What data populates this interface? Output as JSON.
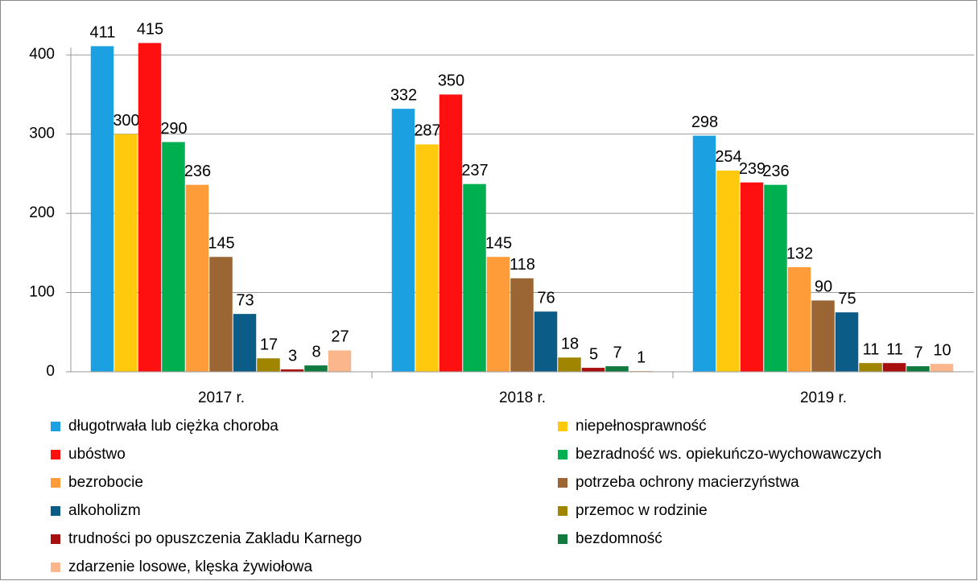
{
  "chart_data": {
    "type": "bar",
    "categories": [
      "2017 r.",
      "2018 r.",
      "2019 r."
    ],
    "series": [
      {
        "name": "długotrwała lub ciężka choroba",
        "color": "#1ba1e2",
        "values": [
          411,
          332,
          298
        ]
      },
      {
        "name": "niepełnosprawność",
        "color": "#ffc90e",
        "values": [
          300,
          287,
          254
        ]
      },
      {
        "name": "ubóstwo",
        "color": "#ff1010",
        "values": [
          415,
          350,
          239
        ]
      },
      {
        "name": "bezradność ws. opiekuńczo-wychowawczych",
        "color": "#00b050",
        "values": [
          290,
          237,
          236
        ]
      },
      {
        "name": "bezrobocie",
        "color": "#ff9c3a",
        "values": [
          236,
          145,
          132
        ]
      },
      {
        "name": "potrzeba ochrony macierzyństwa",
        "color": "#9c6534",
        "values": [
          145,
          118,
          90
        ]
      },
      {
        "name": "alkoholizm",
        "color": "#0c5c88",
        "values": [
          73,
          76,
          75
        ]
      },
      {
        "name": "przemoc w rodzinie",
        "color": "#a08600",
        "values": [
          17,
          18,
          11
        ]
      },
      {
        "name": "trudności po opuszczenia Zakladu Karnego",
        "color": "#a80f0f",
        "values": [
          3,
          5,
          11
        ]
      },
      {
        "name": "bezdomność",
        "color": "#117a3e",
        "values": [
          8,
          7,
          7
        ]
      },
      {
        "name": "zdarzenie losowe, klęska żywiołowa",
        "color": "#fbb78b",
        "values": [
          27,
          1,
          10
        ]
      }
    ],
    "ylim": [
      0,
      450
    ],
    "yticks": [
      0,
      100,
      200,
      300,
      400
    ],
    "grid": true,
    "legend": "bottom"
  }
}
